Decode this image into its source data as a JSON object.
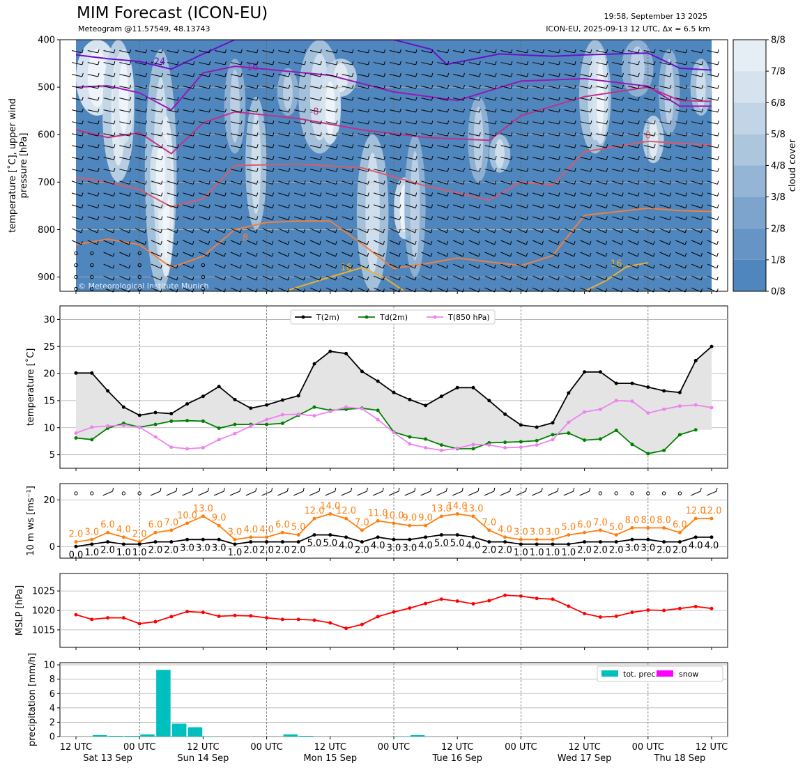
{
  "header": {
    "title": "MIM Forecast (ICON-EU)",
    "subtitle": "Meteogram @11.57549, 48.13743",
    "run_time": "19:58, September 13 2025",
    "model_info": "ICON-EU, 2025-09-13 12 UTC, Δx = 6.5 km",
    "copyright": "© Meteorological Institute Munich"
  },
  "x_axis": {
    "tick_labels": [
      "12 UTC",
      "00 UTC",
      "12 UTC",
      "00 UTC",
      "12 UTC",
      "00 UTC",
      "12 UTC",
      "00 UTC",
      "12 UTC",
      "00 UTC",
      "12 UTC"
    ],
    "tick_hours": [
      0,
      12,
      24,
      36,
      48,
      60,
      72,
      84,
      96,
      108,
      120
    ],
    "day_labels": [
      "Sat 13 Sep",
      "Sun 14 Sep",
      "Mon 15 Sep",
      "Tue 16 Sep",
      "Wed 17 Sep",
      "Thu 18 Sep"
    ],
    "day_label_hours": [
      6,
      24,
      48,
      72,
      96,
      114
    ]
  },
  "colors": {
    "cloud_base": "#4f86bd",
    "t2m": "#000000",
    "td2m": "#008000",
    "t850": "#ee82ee",
    "gust": "#ff7f0e",
    "mslp": "#ff0000",
    "precip": "#00bfbf",
    "snow": "#ff00ff",
    "fill": "#e4e4e4"
  },
  "chart_data": [
    {
      "type": "heatmap",
      "name": "cloud cover / upper air",
      "ylabel": "temperature [˚C], upper wind\npressure [hPa]",
      "y_ticks": [
        400,
        500,
        600,
        700,
        800,
        900
      ],
      "ylim": [
        930,
        400
      ],
      "colorbar_label": "cloud cover",
      "colorbar_ticks": [
        "0/8",
        "1/8",
        "2/8",
        "3/8",
        "4/8",
        "5/8",
        "6/8",
        "7/8",
        "8/8"
      ],
      "colorbar_colors": [
        "#4f86bd",
        "#6594c5",
        "#7ca4cc",
        "#94b5d5",
        "#acc6dd",
        "#c2d5e6",
        "#d6e3ee",
        "#e6eef5",
        "#f3f7fb"
      ],
      "isotherm_labels": [
        "24",
        "16",
        "8",
        "0",
        "-8",
        "-16",
        "-24"
      ],
      "grid": true
    },
    {
      "type": "line",
      "name": "temperature",
      "ylabel": "temperature [˚C]",
      "y_ticks": [
        5,
        10,
        15,
        20,
        25,
        30
      ],
      "ylim": [
        2.5,
        32.5
      ],
      "x_step_hours": 3,
      "legend_position": "top-center",
      "series": [
        {
          "name": "T(2m)",
          "values": [
            20.1,
            20.1,
            16.8,
            13.8,
            12.3,
            12.8,
            12.6,
            14.4,
            15.8,
            17.6,
            15.2,
            13.6,
            14.2,
            15.1,
            15.9,
            21.8,
            24.1,
            23.7,
            20.4,
            18.6,
            16.5,
            15.2,
            14.1,
            15.8,
            17.4,
            17.4,
            15.0,
            12.5,
            10.5,
            10.1,
            10.9,
            16.4,
            20.3,
            20.3,
            18.2,
            18.2,
            17.5,
            16.8,
            16.5,
            22.4,
            25.0
          ]
        },
        {
          "name": "Td(2m)",
          "values": [
            8.1,
            7.8,
            9.9,
            10.8,
            10.1,
            10.6,
            11.2,
            11.3,
            11.2,
            9.9,
            10.6,
            10.6,
            10.6,
            10.8,
            12.3,
            13.8,
            13.2,
            13.4,
            13.6,
            13.2,
            9.2,
            8.3,
            7.9,
            6.8,
            6.1,
            6.1,
            7.2,
            7.3,
            7.4,
            7.6,
            8.7,
            9.0,
            7.7,
            7.9,
            9.5,
            6.9,
            5.2,
            5.8,
            8.7,
            9.6,
            null
          ]
        },
        {
          "name": "T(850 hPa)",
          "values": [
            9.0,
            10.1,
            10.3,
            10.4,
            10.1,
            8.3,
            6.4,
            6.1,
            6.3,
            7.8,
            8.9,
            10.3,
            11.5,
            12.4,
            12.5,
            12.2,
            13.0,
            13.8,
            13.5,
            11.5,
            9.1,
            7.0,
            6.3,
            5.8,
            6.2,
            6.9,
            6.8,
            6.3,
            6.4,
            6.8,
            7.8,
            11.0,
            12.9,
            13.4,
            15.0,
            14.9,
            12.7,
            13.4,
            14.0,
            14.2,
            13.7
          ]
        }
      ],
      "grid": true
    },
    {
      "type": "line",
      "name": "wind",
      "ylabel": "10 m ws [ms⁻¹]",
      "y_ticks": [
        0,
        20
      ],
      "ylim": [
        -5,
        27
      ],
      "x_step_hours": 3,
      "series": [
        {
          "name": "gust",
          "values": [
            2.0,
            3.0,
            6.0,
            4.0,
            2.0,
            6.0,
            7.0,
            10.0,
            13.0,
            9.0,
            3.0,
            4.0,
            4.0,
            6.0,
            5.0,
            12.0,
            14.0,
            12.0,
            7.0,
            11.0,
            10.0,
            9.0,
            9.0,
            13.0,
            14.0,
            13.0,
            7.0,
            4.0,
            3.0,
            3.0,
            3.0,
            5.0,
            6.0,
            7.0,
            5.0,
            8.0,
            8.0,
            8.0,
            6.0,
            12.0,
            12.0
          ]
        },
        {
          "name": "mean",
          "values": [
            0.0,
            1.0,
            2.0,
            1.0,
            1.0,
            2.0,
            2.0,
            3.0,
            3.0,
            3.0,
            1.0,
            2.0,
            2.0,
            2.0,
            2.0,
            5.0,
            5.0,
            4.0,
            2.0,
            4.0,
            3.0,
            3.0,
            4.0,
            5.0,
            5.0,
            4.0,
            2.0,
            2.0,
            1.0,
            1.0,
            1.0,
            1.0,
            2.0,
            2.0,
            2.0,
            3.0,
            3.0,
            2.0,
            2.0,
            4.0,
            4.0
          ]
        }
      ],
      "data_label_text": {
        "gust": [
          "2.0",
          "3.0",
          "6.0",
          "4.0",
          "2.0",
          "6.0",
          "7.0",
          "10.0",
          "13.0",
          "9.0",
          "3.0",
          "4.0",
          "4.0",
          "6.0",
          "5.0",
          "12.0",
          "14.0",
          "12.0",
          "7.0",
          "11.0",
          "10.0",
          "9.0",
          "9.0",
          "13.0",
          "14.0",
          "13.0",
          "7.0",
          "4.0",
          "3.0",
          "3.0",
          "3.0",
          "5.0",
          "6.0",
          "7.0",
          "5.0",
          "8.0",
          "8.0",
          "8.0",
          "6.0",
          "12.0",
          "12.0"
        ],
        "mean": [
          "0.0",
          "1.0",
          "2.0",
          "1.0",
          "1.0",
          "2.0",
          "2.0",
          "3.0",
          "3.0",
          "3.0",
          "1.0",
          "2.0",
          "2.0",
          "2.0",
          "2.0",
          "5.0",
          "5.0",
          "4.0",
          "2.0",
          "4.0",
          "3.0",
          "3.0",
          "4.0",
          "5.0",
          "5.0",
          "4.0",
          "2.0",
          "2.0",
          "1.0",
          "1.0",
          "1.0",
          "1.0",
          "2.0",
          "2.0",
          "2.0",
          "3.0",
          "3.0",
          "2.0",
          "2.0",
          "4.0",
          "4.0"
        ]
      },
      "grid": true
    },
    {
      "type": "line",
      "name": "mslp",
      "ylabel": "MSLP [hPa]",
      "y_ticks": [
        1015,
        1020,
        1025
      ],
      "ylim": [
        1010.5,
        1029.5
      ],
      "x_step_hours": 3,
      "series": [
        {
          "name": "MSLP",
          "values": [
            1018.9,
            1017.7,
            1018.1,
            1018.1,
            1016.6,
            1017.1,
            1018.4,
            1019.7,
            1019.5,
            1018.5,
            1018.7,
            1018.6,
            1018.1,
            1017.7,
            1017.7,
            1017.5,
            1016.8,
            1015.4,
            1016.4,
            1018.4,
            1019.6,
            1020.6,
            1021.8,
            1022.9,
            1022.4,
            1021.7,
            1022.5,
            1023.9,
            1023.7,
            1023.1,
            1022.9,
            1021.1,
            1019.2,
            1018.3,
            1018.5,
            1019.5,
            1020.1,
            1020.0,
            1020.5,
            1021.0,
            1020.5
          ]
        }
      ],
      "grid": true
    },
    {
      "type": "bar",
      "name": "precipitation",
      "ylabel": "precipitation [mm/h]",
      "y_ticks": [
        0,
        2,
        4,
        6,
        8,
        10
      ],
      "ylim": [
        0,
        10.3
      ],
      "legend_position": "top-right",
      "series": [
        {
          "name": "tot. prec.",
          "x_hours": [
            4.5,
            7.5,
            10.5,
            13.5,
            16.5,
            19.5,
            22.5,
            25.5,
            40.5,
            43.5,
            61.5,
            64.5
          ],
          "values": [
            0.2,
            0.1,
            0.1,
            0.3,
            9.3,
            1.8,
            1.3,
            0.05,
            0.3,
            0.1,
            0.05,
            0.2
          ]
        },
        {
          "name": "snow",
          "x_hours": [],
          "values": []
        }
      ],
      "grid": true
    }
  ]
}
